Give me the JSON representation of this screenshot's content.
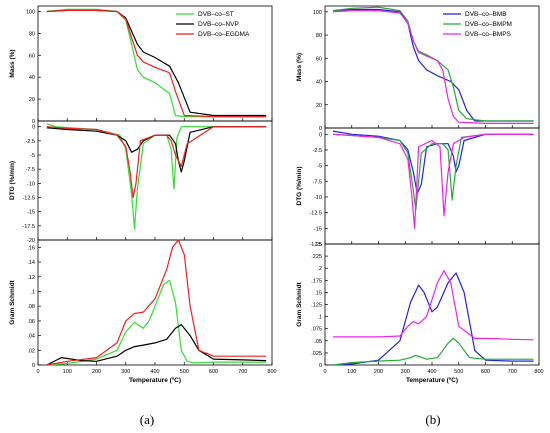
{
  "panels": [
    {
      "label": "(a)",
      "xlabel": "Temperature (ºC)",
      "xlim": [
        0,
        800
      ],
      "xticks": [
        0,
        100,
        200,
        300,
        400,
        500,
        600,
        700,
        800
      ],
      "legend_placement": "top-right",
      "series": [
        {
          "name": "DVB–co–ST",
          "color": "#33dd33"
        },
        {
          "name": "DVB–co–NVP",
          "color": "#000000"
        },
        {
          "name": "DVB–co–EGDMA",
          "color": "#ee2222"
        }
      ],
      "subplots": [
        {
          "type": "line",
          "ylabel": "Mass (%)",
          "ylim": [
            0,
            105
          ],
          "yticks": [
            0,
            20,
            40,
            60,
            80,
            100
          ],
          "series_x": [
            [
              30,
              100,
              200,
              270,
              300,
              320,
              340,
              360,
              400,
              450,
              470,
              500,
              600,
              700,
              780
            ],
            [
              30,
              100,
              200,
              270,
              300,
              320,
              340,
              360,
              400,
              450,
              480,
              520,
              600,
              700,
              780
            ],
            [
              30,
              100,
              200,
              270,
              300,
              320,
              340,
              360,
              400,
              450,
              470,
              500,
              600,
              700,
              780
            ]
          ],
          "series_y": [
            [
              100,
              102,
              102,
              100,
              92,
              70,
              47,
              40,
              35,
              25,
              5,
              4,
              4,
              4,
              4
            ],
            [
              100,
              101,
              101,
              100,
              94,
              82,
              70,
              63,
              58,
              50,
              35,
              8,
              5,
              5,
              5
            ],
            [
              100,
              101,
              101,
              100,
              93,
              76,
              60,
              54,
              49,
              44,
              27,
              5,
              4,
              4,
              4
            ]
          ]
        },
        {
          "type": "line",
          "ylabel": "DTG (%/min)",
          "ylim": [
            -20,
            1
          ],
          "yticks": [
            0,
            -2.5,
            -5,
            -7.5,
            -10,
            -12.5,
            -15,
            -17.5,
            -20
          ],
          "series_x": [
            [
              30,
              60,
              200,
              280,
              300,
              320,
              330,
              340,
              360,
              400,
              440,
              455,
              465,
              475,
              490,
              600,
              780
            ],
            [
              30,
              100,
              200,
              270,
              300,
              320,
              340,
              360,
              400,
              450,
              470,
              480,
              490,
              500,
              520,
              600,
              780
            ],
            [
              30,
              100,
              200,
              270,
              300,
              315,
              325,
              335,
              350,
              400,
              440,
              455,
              470,
              490,
              510,
              600,
              780
            ]
          ],
          "series_y": [
            [
              0.5,
              0,
              -0.5,
              -1.5,
              -4,
              -12,
              -18,
              -11,
              -3,
              -1.5,
              -1.5,
              -4,
              -11,
              -2,
              0,
              0,
              0
            ],
            [
              -0.2,
              -0.5,
              -0.8,
              -1.5,
              -2.5,
              -4.5,
              -4,
              -2.5,
              -1.5,
              -1.5,
              -3,
              -6,
              -8,
              -6,
              -1,
              0,
              0
            ],
            [
              0,
              -0.3,
              -0.5,
              -1.5,
              -3.5,
              -8,
              -12.5,
              -10,
              -2.5,
              -1.5,
              -1.5,
              -2.5,
              -5,
              -7,
              -3,
              0,
              0
            ]
          ]
        },
        {
          "type": "line",
          "ylabel": "Gram Schmidt",
          "ylim": [
            0,
            0.17
          ],
          "yticks": [
            0,
            0.02,
            0.04,
            0.06,
            0.08,
            0.1,
            0.12,
            0.14,
            0.16
          ],
          "series_x": [
            [
              30,
              100,
              200,
              270,
              300,
              330,
              360,
              380,
              400,
              430,
              450,
              470,
              490,
              510,
              530,
              600,
              780
            ],
            [
              30,
              80,
              150,
              200,
              270,
              300,
              330,
              360,
              400,
              440,
              470,
              490,
              520,
              550,
              600,
              700,
              780
            ],
            [
              30,
              100,
              200,
              270,
              300,
              330,
              360,
              400,
              440,
              460,
              480,
              500,
              520,
              550,
              600,
              700,
              780
            ]
          ],
          "series_y": [
            [
              0,
              0.002,
              0.008,
              0.02,
              0.045,
              0.058,
              0.05,
              0.06,
              0.08,
              0.11,
              0.115,
              0.085,
              0.02,
              0.005,
              0.003,
              0.004,
              0.004
            ],
            [
              0,
              0.01,
              0.006,
              0.005,
              0.012,
              0.02,
              0.025,
              0.027,
              0.03,
              0.035,
              0.05,
              0.055,
              0.04,
              0.02,
              0.008,
              0.007,
              0.006
            ],
            [
              0,
              0.005,
              0.01,
              0.03,
              0.06,
              0.07,
              0.072,
              0.09,
              0.13,
              0.16,
              0.17,
              0.15,
              0.08,
              0.02,
              0.012,
              0.012,
              0.012
            ]
          ]
        }
      ]
    },
    {
      "label": "(b)",
      "xlabel": "Temperature (ºC)",
      "xlim": [
        0,
        800
      ],
      "xticks": [
        0,
        100,
        200,
        300,
        400,
        500,
        600,
        700,
        800
      ],
      "legend_placement": "top-right",
      "series": [
        {
          "name": "DVB–co–BMB",
          "color": "#2222dd"
        },
        {
          "name": "DVB–co–BMPM",
          "color": "#22aa33"
        },
        {
          "name": "DVB–co–BMPS",
          "color": "#ee22ee"
        }
      ],
      "subplots": [
        {
          "type": "line",
          "ylabel": "Mass (%)",
          "ylim": [
            0,
            105
          ],
          "yticks": [
            0,
            20,
            40,
            60,
            80,
            100
          ],
          "series_x": [
            [
              30,
              100,
              200,
              280,
              310,
              330,
              350,
              380,
              420,
              470,
              500,
              530,
              560,
              600,
              700,
              780
            ],
            [
              30,
              100,
              200,
              280,
              310,
              330,
              350,
              380,
              420,
              460,
              480,
              500,
              530,
              600,
              700,
              780
            ],
            [
              30,
              100,
              200,
              280,
              310,
              330,
              350,
              380,
              420,
              440,
              460,
              480,
              500,
              600,
              700,
              780
            ]
          ],
          "series_y": [
            [
              101,
              102,
              102,
              100,
              90,
              70,
              58,
              50,
              45,
              40,
              33,
              15,
              6,
              6,
              6,
              6
            ],
            [
              101,
              103,
              104,
              101,
              92,
              75,
              66,
              63,
              58,
              50,
              35,
              15,
              8,
              6,
              6,
              6
            ],
            [
              100,
              101,
              101,
              99,
              90,
              75,
              65,
              62,
              58,
              50,
              25,
              10,
              5,
              4,
              4,
              4
            ]
          ]
        },
        {
          "type": "line",
          "ylabel": "DTG (%/min)",
          "ylim": [
            -17.5,
            1
          ],
          "yticks": [
            0,
            -2.5,
            -5,
            -7.5,
            -10,
            -12.5,
            -15,
            -17.5
          ],
          "series_x": [
            [
              30,
              100,
              200,
              280,
              310,
              330,
              345,
              360,
              380,
              420,
              460,
              480,
              490,
              500,
              520,
              600,
              780
            ],
            [
              30,
              100,
              200,
              280,
              310,
              330,
              340,
              360,
              400,
              440,
              460,
              475,
              490,
              510,
              600,
              780
            ],
            [
              30,
              100,
              200,
              280,
              310,
              325,
              335,
              350,
              400,
              430,
              445,
              460,
              480,
              520,
              600,
              780
            ]
          ],
          "series_y": [
            [
              0.5,
              0,
              -0.3,
              -1,
              -2.5,
              -6,
              -9.5,
              -8,
              -2,
              -1.5,
              -1.5,
              -3.5,
              -6,
              -5,
              -1,
              0,
              0
            ],
            [
              0,
              -0.2,
              -0.5,
              -1,
              -3,
              -9,
              -12,
              -3,
              -1.5,
              -1.5,
              -2.5,
              -10.5,
              -5,
              -0.5,
              0,
              0
            ],
            [
              0,
              -0.2,
              -0.5,
              -1.5,
              -4,
              -10,
              -15,
              -2,
              -1,
              -2,
              -13,
              -6,
              -1.5,
              -0.5,
              0,
              0
            ]
          ]
        },
        {
          "type": "line",
          "ylabel": "Gram Schmidt",
          "ylim": [
            0,
            0.25
          ],
          "yticks": [
            0,
            0.025,
            0.05,
            0.075,
            0.1,
            0.125,
            0.15,
            0.175,
            0.2,
            0.225,
            0.25
          ],
          "series_x": [
            [
              30,
              100,
              200,
              280,
              320,
              350,
              370,
              400,
              420,
              460,
              490,
              520,
              560,
              600,
              700,
              780
            ],
            [
              30,
              100,
              200,
              280,
              320,
              340,
              380,
              420,
              460,
              480,
              500,
              540,
              600,
              700,
              780
            ],
            [
              30,
              100,
              200,
              280,
              310,
              330,
              350,
              380,
              420,
              445,
              470,
              500,
              560,
              600,
              700,
              780
            ]
          ],
          "series_y": [
            [
              0,
              0.002,
              0.01,
              0.05,
              0.13,
              0.165,
              0.15,
              0.11,
              0.12,
              0.17,
              0.19,
              0.15,
              0.03,
              0.01,
              0.008,
              0.008
            ],
            [
              0,
              0.005,
              0.008,
              0.01,
              0.015,
              0.02,
              0.012,
              0.015,
              0.045,
              0.055,
              0.045,
              0.015,
              0.012,
              0.012,
              0.012
            ],
            [
              0.058,
              0.058,
              0.058,
              0.06,
              0.08,
              0.09,
              0.085,
              0.1,
              0.17,
              0.195,
              0.17,
              0.08,
              0.055,
              0.055,
              0.053,
              0.052
            ]
          ]
        }
      ]
    }
  ]
}
